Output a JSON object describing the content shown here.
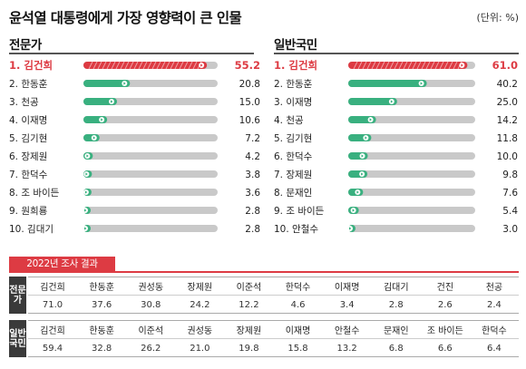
{
  "header": {
    "title": "윤석열 대통령에게 가장 영향력이 큰 인물",
    "unit": "(단위: %)"
  },
  "colors": {
    "accent": "#dd3b43",
    "positive": "#39b07f",
    "track": "#c9c9c9",
    "table_side": "#3a3a3a"
  },
  "chart_data": [
    {
      "type": "bar",
      "title": "전문가",
      "labels": [
        "1. 김건희",
        "2. 한동훈",
        "3. 천공",
        "4. 이재명",
        "5. 김기현",
        "6. 장제원",
        "7. 한덕수",
        "8. 조 바이든",
        "9. 원희룡",
        "10. 김대기"
      ],
      "categories": [
        "김건희",
        "한동훈",
        "천공",
        "이재명",
        "김기현",
        "장제원",
        "한덕수",
        "조 바이든",
        "원희룡",
        "김대기"
      ],
      "values": [
        55.2,
        20.8,
        15.0,
        10.6,
        7.2,
        4.2,
        3.8,
        3.6,
        2.8,
        2.8
      ],
      "display_values": [
        "55.2",
        "20.8",
        "15.0",
        "10.6",
        "7.2",
        "4.2",
        "3.8",
        "3.6",
        "2.8",
        "2.8"
      ],
      "xlim": [
        0,
        60
      ]
    },
    {
      "type": "bar",
      "title": "일반국민",
      "labels": [
        "1. 김건희",
        "2. 한동훈",
        "3. 이재명",
        "4. 천공",
        "5. 김기현",
        "6. 한덕수",
        "7. 장제원",
        "8. 문재인",
        "9. 조 바이든",
        "10. 안철수"
      ],
      "categories": [
        "김건희",
        "한동훈",
        "이재명",
        "천공",
        "김기현",
        "한덕수",
        "장제원",
        "문재인",
        "조 바이든",
        "안철수"
      ],
      "values": [
        61.0,
        40.2,
        25.0,
        14.2,
        11.8,
        10.0,
        9.8,
        7.6,
        5.4,
        3.0
      ],
      "display_values": [
        "61.0",
        "40.2",
        "25.0",
        "14.2",
        "11.8",
        "10.0",
        "9.8",
        "7.6",
        "5.4",
        "3.0"
      ],
      "xlim": [
        0,
        65
      ]
    },
    {
      "type": "table",
      "title": "2022년 조사 결과",
      "groups": [
        {
          "label": "전문가",
          "names": [
            "김건희",
            "한동훈",
            "권성동",
            "장제원",
            "이준석",
            "한덕수",
            "이재명",
            "김대기",
            "건진",
            "천공"
          ],
          "values": [
            "71.0",
            "37.6",
            "30.8",
            "24.2",
            "12.2",
            "4.6",
            "3.4",
            "2.8",
            "2.6",
            "2.4"
          ]
        },
        {
          "label": "일반국민",
          "names": [
            "김건희",
            "한동훈",
            "이준석",
            "권성동",
            "장제원",
            "이재명",
            "안철수",
            "문재인",
            "조 바이든",
            "한덕수"
          ],
          "values": [
            "59.4",
            "32.8",
            "26.2",
            "21.0",
            "19.8",
            "15.8",
            "13.2",
            "6.8",
            "6.6",
            "6.4"
          ]
        }
      ]
    }
  ]
}
